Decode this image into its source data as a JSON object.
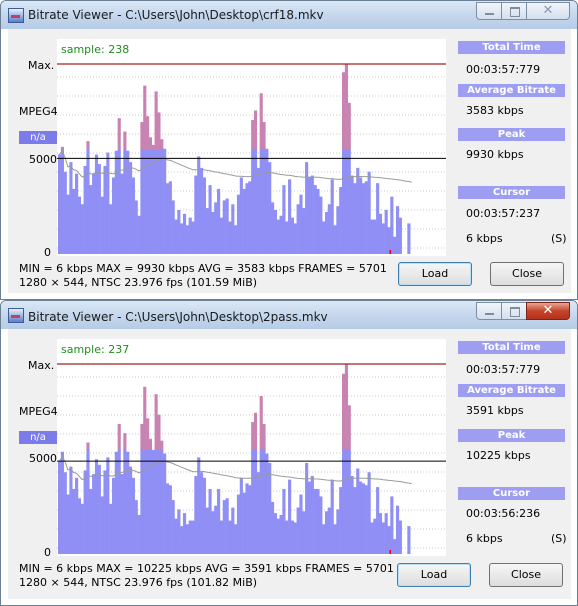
{
  "windows": [
    {
      "title": "Bitrate Viewer - C:\\Users\\John\\Desktop\\crf18.mkv",
      "sample_label": "sample: 238",
      "y_max_label": "Max.",
      "codec_label": "MPEG4",
      "na_badge": "n/a",
      "y_mid_label": "5000",
      "y_zero_label": "0",
      "total_time_header": "Total Time",
      "total_time": "00:03:57:779",
      "avg_bitrate_header": "Average Bitrate",
      "avg_bitrate": "3583 kbps",
      "peak_header": "Peak",
      "peak": "9930 kbps",
      "cursor_header": "Cursor",
      "cursor_time": "00:03:57:237",
      "cursor_kbps": "6 kbps",
      "cursor_flag": "(S)",
      "stats_line1": "MIN = 6 kbps  MAX = 9930 kbps  AVG = 3583 kbps  FRAMES = 5701",
      "stats_line2": "1280 × 544, NTSC 23.976 fps     (101.59 MiB)",
      "load_label": "Load",
      "close_label": "Close"
    },
    {
      "title": "Bitrate Viewer - C:\\Users\\John\\Desktop\\2pass.mkv",
      "sample_label": "sample: 237",
      "y_max_label": "Max.",
      "codec_label": "MPEG4",
      "na_badge": "n/a",
      "y_mid_label": "5000",
      "y_zero_label": "0",
      "total_time_header": "Total Time",
      "total_time": "00:03:57:779",
      "avg_bitrate_header": "Average Bitrate",
      "avg_bitrate": "3591 kbps",
      "peak_header": "Peak",
      "peak": "10225 kbps",
      "cursor_header": "Cursor",
      "cursor_time": "00:03:56:236",
      "cursor_kbps": "6 kbps",
      "cursor_flag": "(S)",
      "stats_line1": "MIN = 6 kbps  MAX = 10225 kbps  AVG = 3591 kbps  FRAMES = 5701",
      "stats_line2": "1280 × 544, NTSC 23.976 fps     (101.82 MiB)",
      "load_label": "Load",
      "close_label": "Close"
    }
  ],
  "colors": {
    "bar_fill": "#8f8ff5",
    "peak_fill": "#c983b3",
    "avg_curve": "#9a9a9a",
    "max_line": "#a42020",
    "cursor_marker": "#e0001a"
  },
  "chart_data": [
    {
      "type": "bar",
      "ylim": [
        0,
        9930
      ],
      "peak": 9930,
      "reference_line": 5000,
      "samples": [
        5200,
        5600,
        4300,
        3100,
        4800,
        3400,
        4200,
        3000,
        2600,
        4600,
        5900,
        3600,
        4200,
        5200,
        4700,
        3000,
        4600,
        5300,
        2600,
        4000,
        5400,
        7100,
        4200,
        6400,
        5400,
        4800,
        4000,
        2800,
        2000,
        6900,
        8800,
        7200,
        6100,
        5700,
        8500,
        7400,
        6000,
        5500,
        3700,
        3800,
        2800,
        1800,
        2300,
        1600,
        2100,
        1500,
        1900,
        1700,
        4100,
        5100,
        4500,
        4000,
        2400,
        3600,
        2200,
        2700,
        3400,
        1900,
        2800,
        2900,
        1700,
        2600,
        1500,
        3100,
        4000,
        3400,
        3700,
        3800,
        7000,
        7500,
        4500,
        8400,
        6900,
        5500,
        4800,
        2700,
        2300,
        1800,
        2000,
        3600,
        1700,
        3900,
        1900,
        1600,
        2600,
        3100,
        2400,
        4800,
        4000,
        4100,
        3600,
        3400,
        3000,
        1700,
        2200,
        2600,
        3900,
        1500,
        2500,
        3500,
        9500,
        9930,
        7900,
        4100,
        3700,
        4500,
        4000,
        3700,
        3800,
        4300,
        1800,
        1800,
        3700,
        2100,
        1600,
        2300,
        1400,
        3000,
        900,
        2500,
        1900,
        0,
        0,
        1600,
        0
      ]
    },
    {
      "type": "bar",
      "ylim": [
        0,
        10225
      ],
      "peak": 10225,
      "reference_line": 5000,
      "samples": [
        5000,
        5500,
        4400,
        3200,
        4700,
        3500,
        4100,
        3000,
        2700,
        4500,
        6000,
        3500,
        4300,
        5100,
        4800,
        3100,
        4500,
        5200,
        2700,
        4100,
        5500,
        7000,
        4300,
        6500,
        5500,
        4700,
        4100,
        2900,
        2100,
        7000,
        9000,
        7300,
        6200,
        5600,
        8600,
        7500,
        6100,
        5400,
        3800,
        3700,
        2900,
        1900,
        2400,
        1500,
        2200,
        1600,
        1800,
        1800,
        4200,
        5200,
        4400,
        4100,
        2500,
        3500,
        2300,
        2600,
        3500,
        1800,
        2900,
        3000,
        1800,
        2500,
        1600,
        3200,
        4100,
        3300,
        3800,
        3700,
        7100,
        7600,
        4400,
        8500,
        7000,
        5400,
        4900,
        2800,
        2200,
        1900,
        2100,
        3500,
        1800,
        4000,
        1800,
        1700,
        2500,
        3200,
        2300,
        4900,
        3900,
        4200,
        3500,
        3500,
        3100,
        1600,
        2300,
        2500,
        4000,
        1600,
        2400,
        3600,
        9700,
        10225,
        8000,
        4200,
        3600,
        4600,
        3900,
        3800,
        3700,
        4400,
        1700,
        1900,
        3600,
        2200,
        1700,
        2200,
        1500,
        3100,
        800,
        2600,
        1800,
        0,
        0,
        1500,
        0
      ]
    }
  ]
}
